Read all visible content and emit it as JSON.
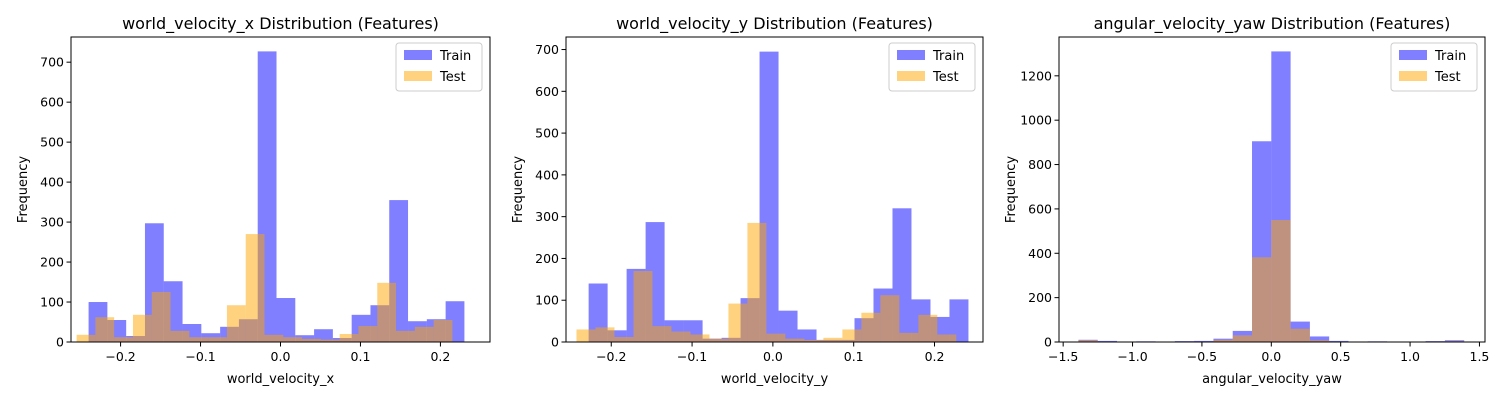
{
  "chart_data": [
    {
      "type": "bar",
      "title": "world_velocity_x Distribution (Features)",
      "xlabel": "world_velocity_x",
      "ylabel": "Frequency",
      "xlim": [
        -0.262,
        0.262
      ],
      "ylim": [
        0,
        763
      ],
      "xticks": [
        -0.2,
        -0.1,
        0.0,
        0.1,
        0.2
      ],
      "xtick_labels": [
        "−0.2",
        "−0.1",
        "0.0",
        "0.1",
        "0.2"
      ],
      "yticks": [
        0,
        100,
        200,
        300,
        400,
        500,
        600,
        700
      ],
      "legend": "top-right",
      "series": [
        {
          "name": "Train",
          "color": "#0000ff",
          "opacity": 0.5,
          "edges": [
            -0.24,
            -0.2165,
            -0.193,
            -0.1695,
            -0.146,
            -0.1225,
            -0.099,
            -0.0755,
            -0.052,
            -0.0285,
            -0.005,
            0.0185,
            0.042,
            0.0655,
            0.089,
            0.1125,
            0.136,
            0.1595,
            0.183,
            0.2065,
            0.23
          ],
          "values": [
            100,
            55,
            15,
            297,
            152,
            45,
            22,
            38,
            57,
            727,
            110,
            17,
            32,
            10,
            68,
            92,
            355,
            52,
            57,
            102
          ]
        },
        {
          "name": "Test",
          "color": "#ffa500",
          "opacity": 0.5,
          "edges": [
            -0.255,
            -0.2315,
            -0.208,
            -0.1845,
            -0.161,
            -0.1375,
            -0.114,
            -0.0905,
            -0.067,
            -0.0435,
            -0.02,
            0.0035,
            0.027,
            0.0505,
            0.074,
            0.0975,
            0.121,
            0.1445,
            0.168,
            0.1915,
            0.215
          ],
          "values": [
            18,
            62,
            12,
            68,
            125,
            28,
            12,
            12,
            92,
            270,
            18,
            12,
            8,
            6,
            20,
            40,
            148,
            28,
            38,
            55
          ]
        }
      ]
    },
    {
      "type": "bar",
      "title": "world_velocity_y Distribution (Features)",
      "xlabel": "world_velocity_y",
      "ylabel": "Frequency",
      "xlim": [
        -0.256,
        0.26
      ],
      "ylim": [
        0,
        730
      ],
      "xticks": [
        -0.2,
        -0.1,
        0.0,
        0.1,
        0.2
      ],
      "xtick_labels": [
        "−0.2",
        "−0.1",
        "0.0",
        "0.1",
        "0.2"
      ],
      "yticks": [
        0,
        100,
        200,
        300,
        400,
        500,
        600,
        700
      ],
      "legend": "top-right",
      "series": [
        {
          "name": "Train",
          "color": "#0000ff",
          "opacity": 0.5,
          "edges": [
            -0.228,
            -0.2045,
            -0.181,
            -0.1575,
            -0.134,
            -0.1105,
            -0.087,
            -0.0635,
            -0.04,
            -0.0165,
            0.007,
            0.0305,
            0.054,
            0.0775,
            0.101,
            0.1245,
            0.148,
            0.1715,
            0.195,
            0.2185,
            0.242
          ],
          "values": [
            140,
            28,
            175,
            287,
            52,
            52,
            8,
            10,
            105,
            695,
            75,
            30,
            5,
            5,
            57,
            128,
            320,
            102,
            60,
            102
          ]
        },
        {
          "name": "Test",
          "color": "#ffa500",
          "opacity": 0.5,
          "edges": [
            -0.243,
            -0.2195,
            -0.196,
            -0.1725,
            -0.149,
            -0.1255,
            -0.102,
            -0.0785,
            -0.055,
            -0.0315,
            -0.008,
            0.0155,
            0.039,
            0.0625,
            0.086,
            0.1095,
            0.133,
            0.1565,
            0.18,
            0.2035,
            0.227
          ],
          "values": [
            30,
            35,
            12,
            170,
            38,
            25,
            18,
            8,
            92,
            285,
            20,
            8,
            5,
            10,
            30,
            70,
            112,
            22,
            65,
            18
          ]
        }
      ]
    },
    {
      "type": "bar",
      "title": "angular_velocity_yaw Distribution (Features)",
      "xlabel": "angular_velocity_yaw",
      "ylabel": "Frequency",
      "xlim": [
        -1.53,
        1.54
      ],
      "ylim": [
        0,
        1375
      ],
      "xticks": [
        -1.5,
        -1.0,
        -0.5,
        0.0,
        0.5,
        1.0,
        1.5
      ],
      "xtick_labels": [
        "−1.5",
        "−1.0",
        "−0.5",
        "0.0",
        "0.5",
        "1.0",
        "1.5"
      ],
      "yticks": [
        0,
        200,
        400,
        600,
        800,
        1000,
        1200
      ],
      "legend": "top-right",
      "series": [
        {
          "name": "Train",
          "color": "#0000ff",
          "opacity": 0.5,
          "edges": [
            -1.39,
            -1.251,
            -1.112,
            -0.973,
            -0.834,
            -0.695,
            -0.556,
            -0.417,
            -0.278,
            -0.139,
            0.0,
            0.139,
            0.278,
            0.417,
            0.556,
            0.695,
            0.834,
            0.973,
            1.112,
            1.251,
            1.39
          ],
          "values": [
            10,
            5,
            2,
            3,
            2,
            4,
            5,
            15,
            50,
            905,
            1310,
            92,
            25,
            5,
            2,
            3,
            2,
            2,
            4,
            8
          ]
        },
        {
          "name": "Test",
          "color": "#ffa500",
          "opacity": 0.5,
          "edges": [
            -1.39,
            -1.251,
            -1.112,
            -0.973,
            -0.834,
            -0.695,
            -0.556,
            -0.417,
            -0.278,
            -0.139,
            0.0,
            0.139,
            0.278,
            0.417,
            0.556,
            0.695,
            0.834,
            0.973,
            1.112,
            1.251,
            1.39
          ],
          "values": [
            8,
            2,
            0,
            1,
            1,
            1,
            2,
            10,
            30,
            382,
            550,
            60,
            8,
            2,
            0,
            1,
            0,
            1,
            1,
            4
          ]
        }
      ]
    }
  ]
}
